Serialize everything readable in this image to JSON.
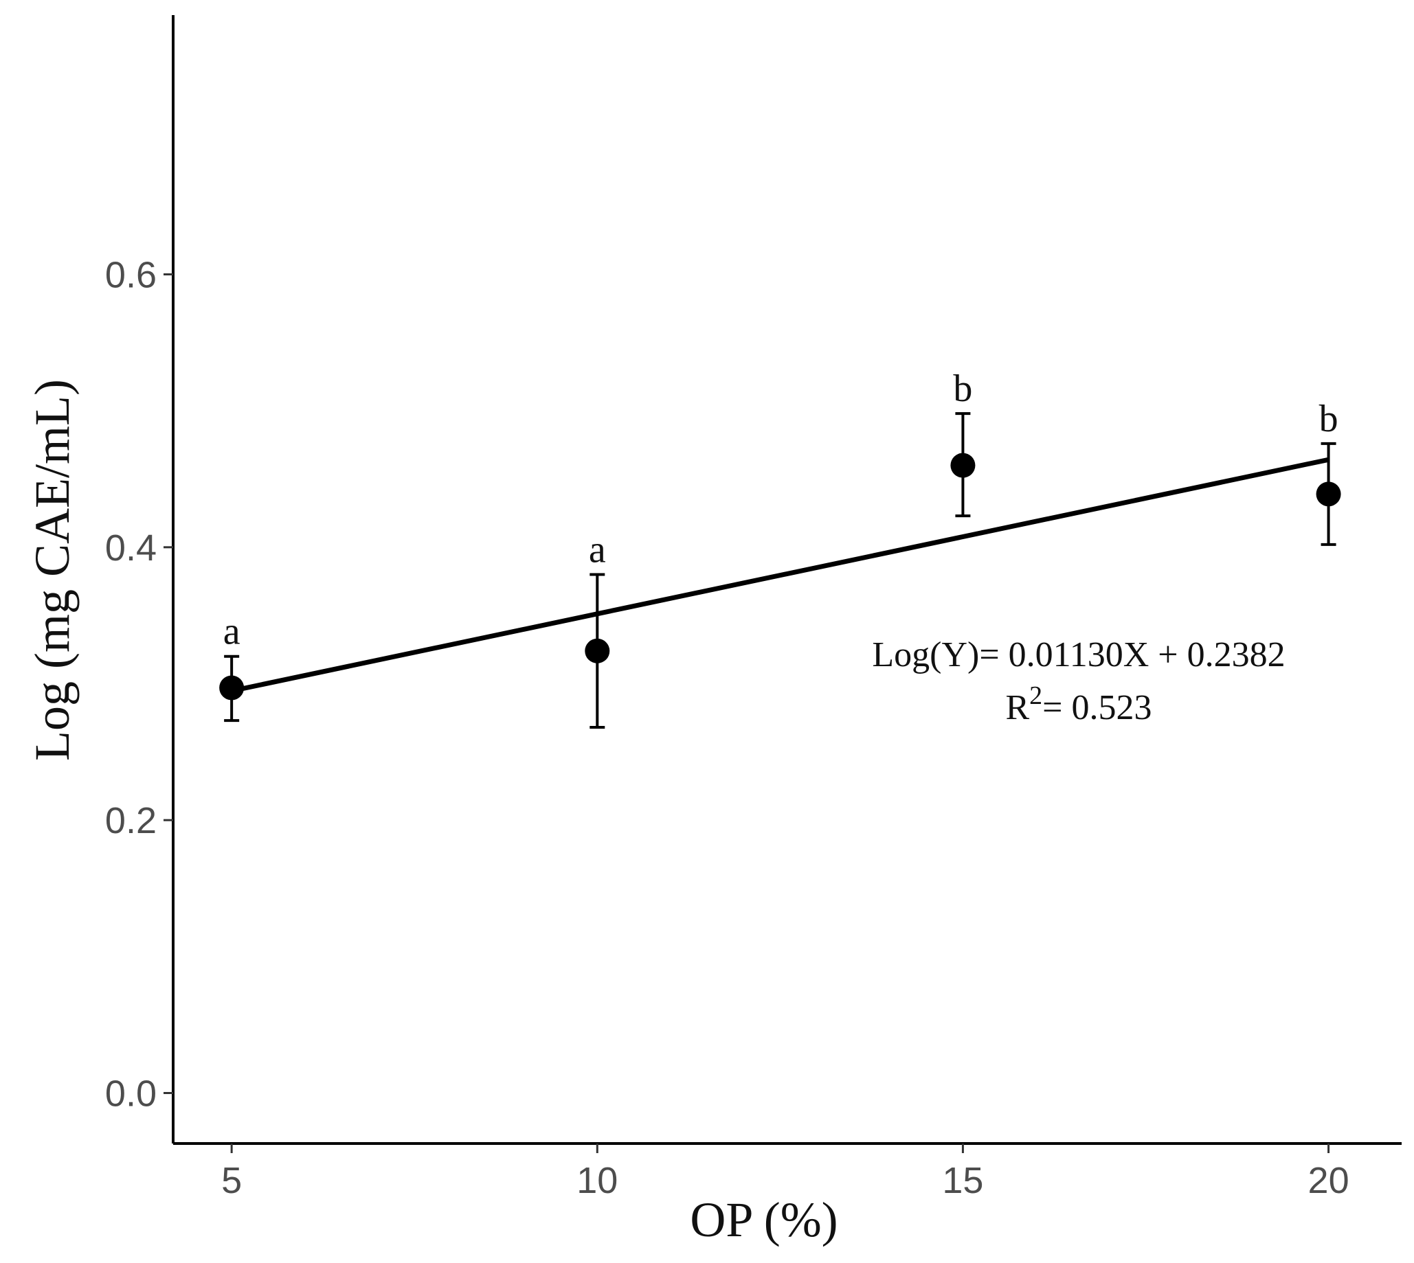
{
  "chart_data": {
    "type": "scatter",
    "xlabel": "OP (%)",
    "ylabel": "Log (mg CAE/mL)",
    "xlim": [
      4.2,
      21.0
    ],
    "ylim": [
      -0.037,
      0.79
    ],
    "x_ticks": [
      5,
      10,
      15,
      20
    ],
    "x_tick_labels": [
      "5",
      "10",
      "15",
      "20"
    ],
    "y_ticks": [
      0.0,
      0.2,
      0.4,
      0.6
    ],
    "y_tick_labels": [
      "0.0",
      "0.2",
      "0.4",
      "0.6"
    ],
    "grid": false,
    "series": [
      {
        "name": "Log (mg CAE/mL)",
        "points": [
          {
            "x": 5,
            "y": 0.297,
            "err_low": 0.273,
            "err_high": 0.32,
            "letter": "a"
          },
          {
            "x": 10,
            "y": 0.324,
            "err_low": 0.268,
            "err_high": 0.38,
            "letter": "a"
          },
          {
            "x": 15,
            "y": 0.46,
            "err_low": 0.423,
            "err_high": 0.498,
            "letter": "b"
          },
          {
            "x": 20,
            "y": 0.439,
            "err_low": 0.402,
            "err_high": 0.476,
            "letter": "b"
          }
        ]
      }
    ],
    "fit_line": {
      "slope": 0.0113,
      "intercept": 0.2382,
      "x_start": 5,
      "x_end": 20
    },
    "annotations": {
      "equation": "Log(Y)= 0.01130X + 0.2382",
      "r2_label": "R",
      "r2_superscript": "2",
      "r2_value": "= 0.523"
    }
  }
}
